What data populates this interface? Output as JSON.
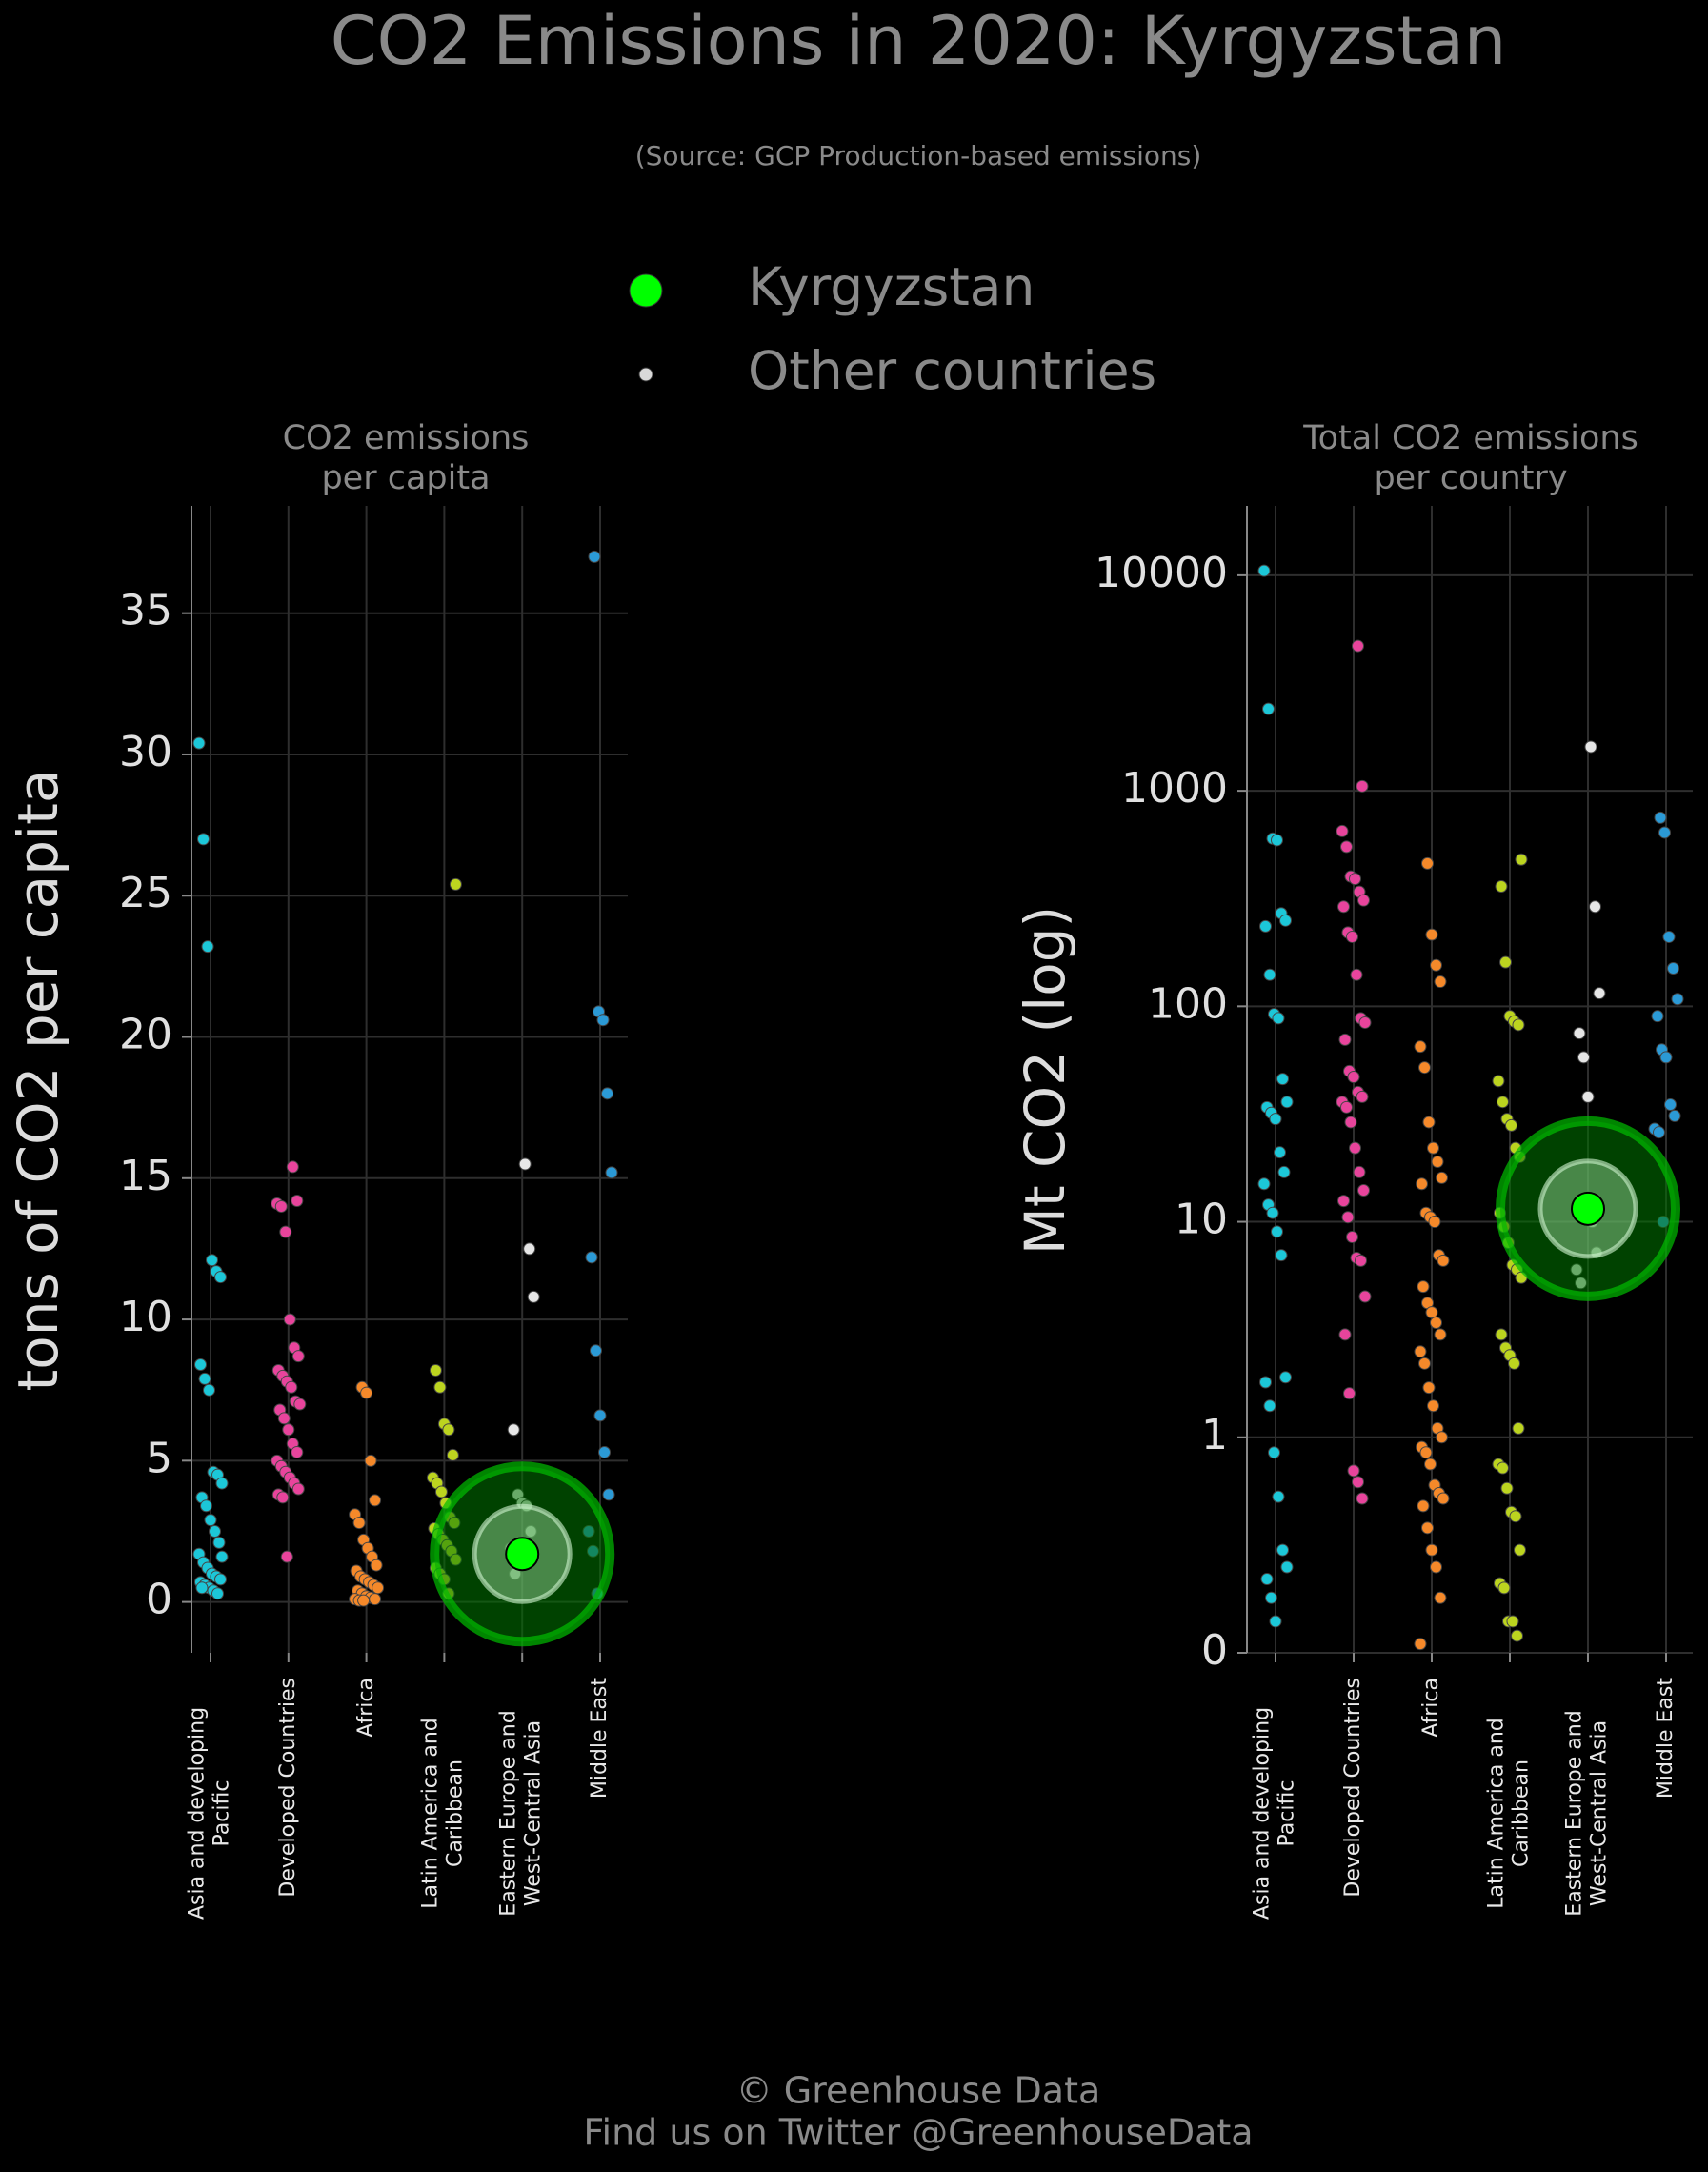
{
  "title": "CO2 Emissions in 2020: Kyrgyzstan",
  "subtitle": "(Source: GCP Production-based emissions)",
  "legend": [
    {
      "name": "Kyrgyzstan",
      "color": "#00ff00"
    },
    {
      "name": "Other countries",
      "color": "#d9d9d9"
    }
  ],
  "footer": [
    "© Greenhouse Data",
    "Find us on Twitter @GreenhouseData"
  ],
  "chart_data": [
    {
      "type": "strip",
      "title": [
        "CO2 emissions",
        "per capita"
      ],
      "ylabel": "tons of CO2 per capita",
      "categories": [
        "Asia and developing Pacific",
        "Developed Countries",
        "Africa",
        "Latin America and Caribbean",
        "Eastern Europe and West-Central Asia",
        "Middle East"
      ],
      "colors": [
        "#1cc7d8",
        "#e8449c",
        "#f5892a",
        "#bcd41f",
        "#e6e6e6",
        "#2b9ad6"
      ],
      "values": [
        [
          30.4,
          27,
          23.2,
          12.1,
          11.7,
          11.5,
          8.4,
          7.9,
          7.5,
          4.6,
          4.5,
          4.2,
          3.7,
          3.4,
          2.9,
          2.5,
          2.1,
          1.7,
          1.4,
          1.2,
          1.0,
          0.9,
          0.8,
          0.7,
          0.6,
          0.5,
          0.4,
          0.3,
          1.6,
          0.5
        ],
        [
          15.4,
          14.2,
          14.1,
          14.0,
          13.1,
          10.0,
          9.0,
          8.7,
          8.2,
          8.0,
          7.8,
          7.6,
          7.1,
          7.0,
          6.8,
          6.5,
          6.1,
          5.6,
          5.3,
          5.0,
          4.8,
          4.6,
          4.4,
          4.2,
          4.0,
          3.8,
          3.7,
          1.6
        ],
        [
          7.6,
          7.4,
          5.0,
          3.6,
          3.1,
          2.8,
          2.2,
          1.9,
          1.6,
          1.3,
          1.1,
          0.9,
          0.8,
          0.7,
          0.6,
          0.5,
          0.4,
          0.3,
          0.2,
          0.15,
          0.1,
          0.1,
          0.05,
          0.05
        ],
        [
          25.4,
          8.2,
          7.6,
          6.3,
          6.1,
          5.2,
          4.4,
          4.2,
          3.9,
          3.5,
          3.0,
          2.8,
          2.6,
          2.4,
          2.2,
          2.0,
          1.8,
          1.5,
          1.2,
          1.0,
          0.8,
          0.3
        ],
        [
          15.5,
          12.5,
          10.8,
          6.1,
          3.8,
          3.5,
          3.4,
          2.5,
          1.9,
          1.0
        ],
        [
          37.0,
          20.9,
          20.6,
          18.0,
          15.2,
          12.2,
          8.9,
          6.6,
          5.3,
          3.8,
          2.5,
          1.8,
          0.3
        ]
      ],
      "highlight": {
        "category": 4,
        "value": 1.7
      },
      "ylim": [
        -1.8,
        38.8
      ],
      "yticks": [
        0,
        5,
        10,
        15,
        20,
        25,
        30,
        35
      ],
      "grid": true,
      "log": false
    },
    {
      "type": "strip",
      "title": [
        "Total CO2 emissions",
        "per country"
      ],
      "ylabel": "Mt CO2 (log)",
      "categories": [
        "Asia and developing Pacific",
        "Developed Countries",
        "Africa",
        "Latin America and Caribbean",
        "Eastern Europe and West-Central Asia",
        "Middle East"
      ],
      "colors": [
        "#1cc7d8",
        "#e8449c",
        "#f5892a",
        "#bcd41f",
        "#e6e6e6",
        "#2b9ad6"
      ],
      "values": [
        [
          10500,
          2400,
          600,
          590,
          270,
          250,
          235,
          140,
          92,
          88,
          46,
          36,
          34,
          32,
          30,
          21,
          17,
          15,
          12,
          11,
          9,
          7,
          1.9,
          1.8,
          1.4,
          0.85,
          0.53,
          0.3,
          0.25,
          0.22,
          0.18,
          0.14
        ],
        [
          4700,
          1050,
          650,
          550,
          400,
          390,
          340,
          310,
          290,
          220,
          210,
          140,
          88,
          84,
          70,
          50,
          47,
          40,
          38,
          36,
          34,
          29,
          22,
          17,
          14,
          12.5,
          10.5,
          8.5,
          6.8,
          6.6,
          4.5,
          3.0,
          1.6,
          0.7,
          0.62,
          0.52
        ],
        [
          460,
          215,
          155,
          130,
          65,
          52,
          29,
          22,
          19,
          16,
          15,
          11,
          10.5,
          10,
          7,
          6.6,
          5,
          4.2,
          3.8,
          3.4,
          3.0,
          2.5,
          2.2,
          1.7,
          1.4,
          1.1,
          1.0,
          0.9,
          0.85,
          0.75,
          0.6,
          0.55,
          0.52,
          0.48,
          0.38,
          0.3,
          0.25,
          0.18,
          0.11
        ],
        [
          480,
          360,
          160,
          90,
          85,
          82,
          45,
          36,
          30,
          28,
          22,
          20,
          11,
          9.5,
          8,
          6.3,
          6,
          5.5,
          3,
          2.6,
          2.4,
          2.2,
          1.1,
          0.75,
          0.72,
          0.58,
          0.45,
          0.43,
          0.3,
          0.21,
          0.2,
          0.14,
          0.14,
          0.12
        ],
        [
          1600,
          290,
          115,
          75,
          58,
          38,
          10,
          7.2,
          6,
          5.2
        ],
        [
          750,
          640,
          210,
          150,
          108,
          90,
          63,
          58,
          35,
          31,
          27,
          26,
          10
        ]
      ],
      "highlight": {
        "category": 4,
        "value": 11.5
      },
      "ylim": [
        0.1,
        21000
      ],
      "yticks": [
        {
          "value": 0.1,
          "label": "0"
        },
        1,
        10,
        100,
        1000,
        10000
      ],
      "grid": true,
      "log": true
    }
  ]
}
